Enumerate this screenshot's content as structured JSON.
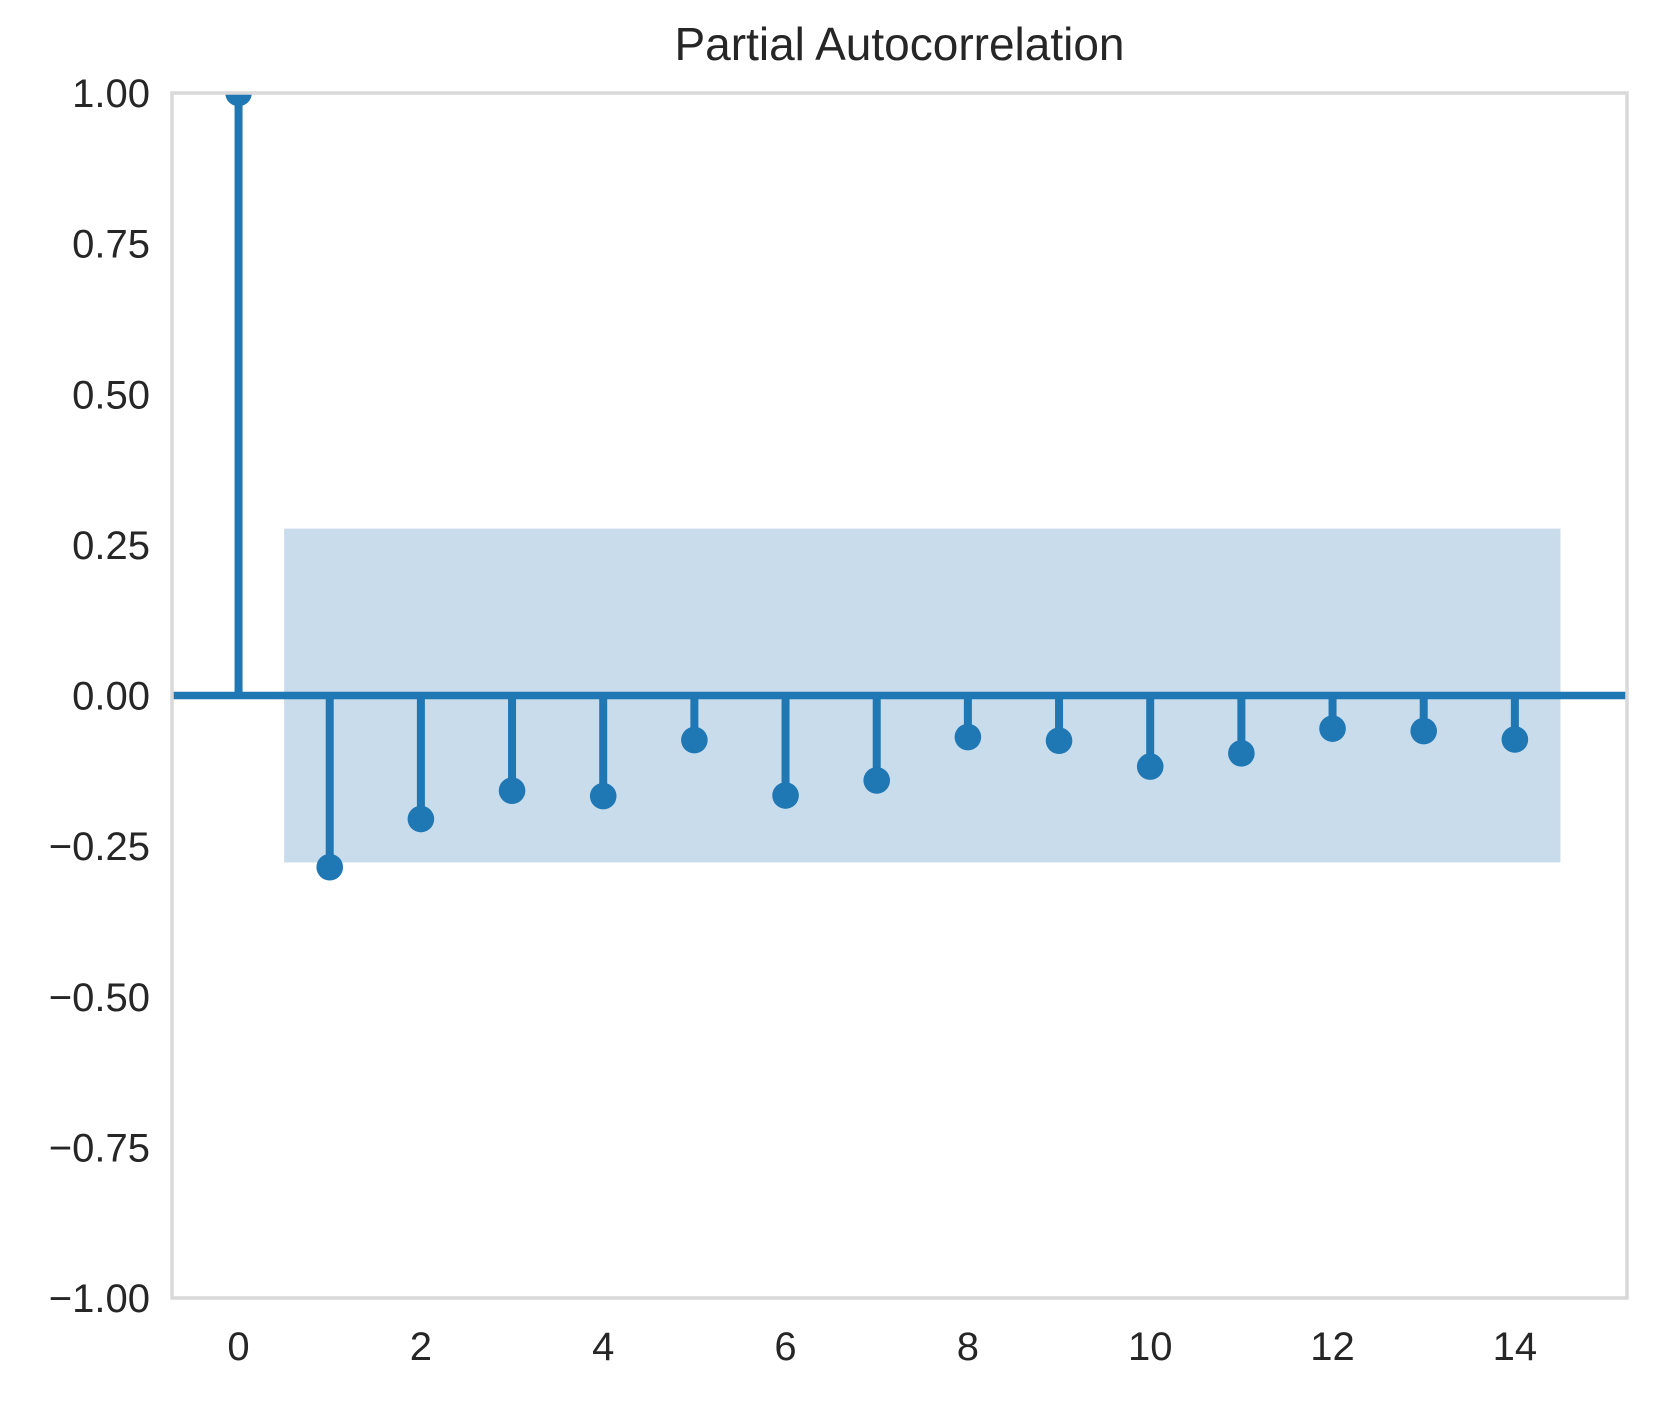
{
  "title": "Partial Autocorrelation",
  "chart_data": {
    "type": "stem",
    "title": "Partial Autocorrelation",
    "xlabel": "",
    "ylabel": "",
    "x": [
      0,
      1,
      2,
      3,
      4,
      5,
      6,
      7,
      8,
      9,
      10,
      11,
      12,
      13,
      14
    ],
    "values": [
      1.0,
      -0.285,
      -0.205,
      -0.158,
      -0.167,
      -0.074,
      -0.166,
      -0.141,
      -0.069,
      -0.075,
      -0.118,
      -0.096,
      -0.055,
      -0.059,
      -0.073
    ],
    "confidence_band": {
      "low": -0.277,
      "high": 0.277,
      "x_start": 0.5,
      "x_end": 14.5
    },
    "xlim": [
      -0.73,
      15.23
    ],
    "ylim": [
      -1.0,
      1.0
    ],
    "x_ticks": [
      {
        "value": 0,
        "label": "0"
      },
      {
        "value": 2,
        "label": "2"
      },
      {
        "value": 4,
        "label": "4"
      },
      {
        "value": 6,
        "label": "6"
      },
      {
        "value": 8,
        "label": "8"
      },
      {
        "value": 10,
        "label": "10"
      },
      {
        "value": 12,
        "label": "12"
      },
      {
        "value": 14,
        "label": "14"
      }
    ],
    "y_ticks": [
      {
        "value": 1.0,
        "label": "1.00"
      },
      {
        "value": 0.75,
        "label": "0.75"
      },
      {
        "value": 0.5,
        "label": "0.50"
      },
      {
        "value": 0.25,
        "label": "0.25"
      },
      {
        "value": 0.0,
        "label": "0.00"
      },
      {
        "value": -0.25,
        "label": "−0.25"
      },
      {
        "value": -0.5,
        "label": "−0.50"
      },
      {
        "value": -0.75,
        "label": "−0.75"
      },
      {
        "value": -1.0,
        "label": "−1.00"
      }
    ],
    "grid": false,
    "legend": null,
    "colors": {
      "stem": "#1f77b4",
      "marker": "#1f77b4",
      "band": "#c9dcec",
      "spine": "#d9d9d9",
      "text": "#262626",
      "background": "#ffffff"
    }
  }
}
